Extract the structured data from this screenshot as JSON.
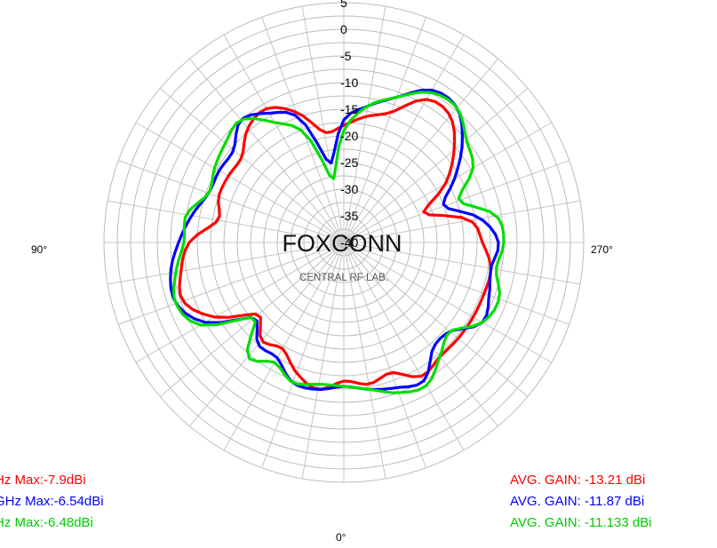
{
  "chart_data": {
    "type": "polar-line",
    "watermark": {
      "title": "FOXCONN",
      "subtitle": "CENTRAL RF LAB."
    },
    "radial_axis": {
      "ticks": [
        "5",
        "0",
        "-5",
        "-10",
        "-15",
        "-20",
        "-25",
        "-30",
        "-35",
        "-40"
      ],
      "rlim": [
        -40,
        5
      ],
      "unit": "dBi"
    },
    "angle_labels": {
      "bottom": "0°",
      "left": "90°",
      "right": "270°"
    },
    "grid": true,
    "series": [
      {
        "color": "#ff0000",
        "legend_left": "Hz  Max:-7.9dBi",
        "legend_right": "AVG. GAIN: -13.21  dBi",
        "values": [
          -14,
          -13,
          -14,
          -11,
          -12,
          -12,
          -12,
          -12,
          -12,
          -14,
          -16,
          -24,
          -18,
          -13,
          -9,
          -9,
          -14,
          -16,
          -18,
          -19,
          -14,
          -11,
          -12,
          -15,
          -15,
          -15,
          -16,
          -11,
          -9,
          -7.9,
          -12,
          -19,
          -16,
          -17,
          -14,
          -12
        ]
      },
      {
        "color": "#0000ff",
        "legend_left": "GHz  Max:-6.54dBi",
        "legend_right": "AVG. GAIN: -11.87  dBi",
        "values": [
          -13,
          -12,
          -11,
          -10,
          -14,
          -14,
          -10,
          -11,
          -12,
          -11,
          -14,
          -20,
          -16,
          -11,
          -7,
          -7,
          -11,
          -14,
          -17,
          -25,
          -15,
          -12,
          -10,
          -13,
          -13,
          -13,
          -11,
          -9,
          -7,
          -6.54,
          -10,
          -18,
          -15,
          -15,
          -12,
          -12
        ]
      },
      {
        "color": "#00dd00",
        "legend_left": "Hz  Max:-6.48dBi",
        "legend_right": "AVG. GAIN: -11.133  dBi",
        "values": [
          -13,
          -12,
          -10,
          -9,
          -12,
          -14,
          -10,
          -9,
          -11,
          -10,
          -11,
          -17,
          -12,
          -10,
          -7,
          -7.5,
          -11,
          -14,
          -19,
          -28,
          -18,
          -14,
          -10,
          -11,
          -12,
          -13,
          -10,
          -10,
          -8,
          -6.48,
          -9,
          -18,
          -12,
          -14,
          -12,
          -13
        ]
      }
    ]
  }
}
